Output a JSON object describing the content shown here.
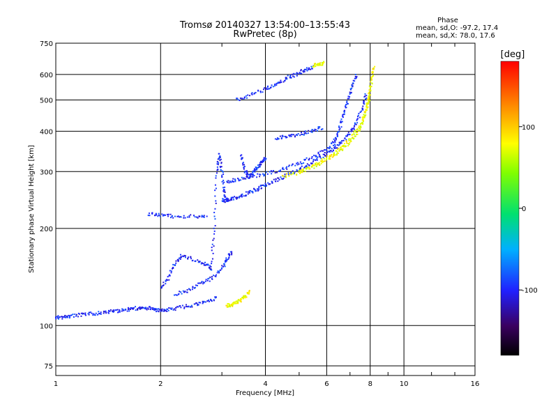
{
  "chart_data": {
    "type": "scatter",
    "title": "Tromsø 20140327 13:54:00–13:55:43",
    "subtitle": "RwPretec (8p)",
    "xlabel": "Frequency [MHz]",
    "ylabel": "Stationary phase Virtual Height [km]",
    "x_scale": "log",
    "y_scale": "log",
    "xlim": [
      1,
      16
    ],
    "ylim": [
      70,
      750
    ],
    "x_ticks": [
      "1",
      "2",
      "4",
      "6",
      "8",
      "10",
      "16"
    ],
    "y_ticks": [
      "75",
      "100",
      "200",
      "300",
      "400",
      "500",
      "600",
      "750"
    ],
    "grid": true,
    "phase_stats": {
      "heading": "Phase",
      "line_o": "mean, sd,O: -97.2, 17.4",
      "line_x": "mean, sd,X:  78.0, 17.6"
    },
    "colorbar": {
      "label": "[deg]",
      "ticks": [
        "100",
        "0",
        "-100"
      ],
      "range": [
        -180,
        180
      ]
    },
    "series": [
      {
        "mode": "O",
        "phase_mean": -97.2,
        "traces": [
          {
            "x": [
              1.0,
              1.05,
              1.1,
              1.2,
              1.3,
              1.4,
              1.5,
              1.6,
              1.7,
              1.8,
              1.9,
              2.0,
              2.1,
              2.3,
              2.5,
              2.7,
              2.9
            ],
            "y": [
              106,
              106,
              107,
              108,
              109,
              110,
              111,
              112,
              113,
              113,
              113,
              111,
              112,
              114,
              116,
              118,
              122
            ]
          },
          {
            "x": [
              3.0,
              3.1,
              3.2,
              3.4,
              3.6,
              3.8,
              4.0,
              4.3,
              4.6,
              5.0,
              5.4,
              5.8,
              6.2,
              6.6,
              7.0,
              7.3,
              7.6,
              7.8
            ],
            "y": [
              245,
              243,
              247,
              252,
              258,
              265,
              273,
              282,
              292,
              305,
              318,
              333,
              348,
              368,
              395,
              425,
              470,
              520
            ]
          },
          {
            "x": [
              3.1,
              3.3,
              3.6,
              4.0,
              4.5,
              5.0,
              5.5,
              6.0,
              6.4
            ],
            "y": [
              280,
              282,
              288,
              295,
              305,
              318,
              333,
              350,
              380
            ]
          },
          {
            "x": [
              3.3,
              3.6,
              4.0,
              4.3,
              4.6,
              4.9,
              5.2,
              5.5
            ],
            "y": [
              500,
              515,
              540,
              560,
              585,
              600,
              620,
              635
            ]
          },
          {
            "x": [
              1.85,
              2.0,
              2.2,
              2.5,
              2.7
            ],
            "y": [
              222,
              220,
              218,
              218,
              218
            ]
          },
          {
            "x": [
              2.8,
              2.85,
              2.9,
              2.95,
              3.0,
              3.05,
              3.1
            ],
            "y": [
              150,
              200,
              300,
              340,
              300,
              260,
              245
            ]
          },
          {
            "x": [
              3.4,
              3.5,
              3.6,
              3.7,
              3.8,
              3.9,
              4.0
            ],
            "y": [
              340,
              300,
              290,
              300,
              310,
              320,
              330
            ]
          },
          {
            "x": [
              2.0,
              2.1,
              2.2,
              2.3,
              2.5,
              2.7,
              2.8
            ],
            "y": [
              130,
              140,
              155,
              165,
              160,
              155,
              150
            ]
          },
          {
            "x": [
              2.2,
              2.4,
              2.6,
              2.8,
              3.0,
              3.1,
              3.2
            ],
            "y": [
              125,
              128,
              135,
              140,
              150,
              160,
              170
            ]
          },
          {
            "x": [
              4.3,
              4.6,
              5.0,
              5.4,
              5.8
            ],
            "y": [
              380,
              385,
              390,
              400,
              410
            ]
          },
          {
            "x": [
              6.3,
              6.5,
              6.7,
              6.9,
              7.1,
              7.3
            ],
            "y": [
              360,
              400,
              450,
              500,
              550,
              600
            ]
          }
        ]
      },
      {
        "mode": "X",
        "phase_mean": 78.0,
        "traces": [
          {
            "x": [
              4.5,
              5.0,
              5.5,
              6.0,
              6.5,
              7.0,
              7.4,
              7.7,
              7.9,
              8.0,
              8.1,
              8.2
            ],
            "y": [
              290,
              298,
              310,
              325,
              345,
              370,
              400,
              440,
              490,
              540,
              590,
              630
            ]
          },
          {
            "x": [
              5.0,
              5.5,
              6.0,
              6.5,
              7.0,
              7.5,
              7.8,
              8.0
            ],
            "y": [
              300,
              312,
              330,
              350,
              378,
              420,
              470,
              520
            ]
          },
          {
            "x": [
              3.1,
              3.2,
              3.3,
              3.4,
              3.5,
              3.6
            ],
            "y": [
              115,
              116,
              118,
              120,
              123,
              128
            ]
          },
          {
            "x": [
              5.5,
              5.7,
              5.9
            ],
            "y": [
              640,
              645,
              650
            ]
          }
        ]
      }
    ]
  }
}
